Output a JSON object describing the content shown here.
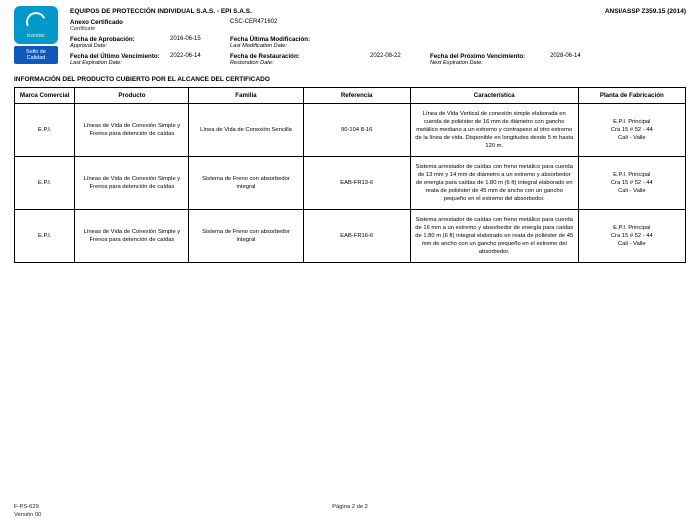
{
  "header": {
    "company": "EQUIPOS DE PROTECCIÓN INDIVIDUAL S.A.S. - EPI S.A.S.",
    "standard": "ANSI/ASSP Z359.15 (2014)",
    "annex_label": "Anexo Certificado",
    "annex_sub": "Certificate",
    "annex_value": "CSC-CER471602",
    "approval_label": "Fecha de Aprobación:",
    "approval_sub": "Approval Date:",
    "approval_value": "2016-06-15",
    "lastmod_label": "Fecha Última Modificación:",
    "lastmod_sub": "Last Modification Date:",
    "lastmod_value": "",
    "lastexp_label": "Fecha del Último Vencimiento:",
    "lastexp_sub": "Last Expiration Date:",
    "lastexp_value": "2022-06-14",
    "restore_label": "Fecha de Restauración:",
    "restore_sub": "Restoration Date:",
    "restore_value": "2022-08-22",
    "nextexp_label": "Fecha del Próximo Vencimiento:",
    "nextexp_sub": "Next Expiration Date:",
    "nextexp_value": "2028-06-14"
  },
  "logo": {
    "brand": "icontec",
    "seal_line1": "Sello de",
    "seal_line2": "Calidad"
  },
  "section_title": "INFORMACIÓN DEL PRODUCTO CUBIERTO POR EL ALCANCE DEL CERTIFICADO",
  "table": {
    "headers": {
      "marca": "Marca Comercial",
      "producto": "Producto",
      "familia": "Familia",
      "referencia": "Referencia",
      "caracteristica": "Característica",
      "planta": "Planta de Fabricación"
    },
    "rows": [
      {
        "marca": "E.P.I.",
        "producto": "Líneas de Vida de Conexión Simple y Frenos para detención de caídas",
        "familia": "Línea de Vida de Conexión Sencilla",
        "referencia": "90-104 8-16",
        "caracteristica": "Línea de Vida Vertical de conexión simple elaborada en cuerda de poliéster de 16 mm de diámetro con gancho metálico mediano a un extremo y contrapeso al otro extremo de la línea de vida. Disponible en longitudes desde 5 m hasta 120 m.",
        "planta": "E.P.I. Principal\nCra 15 # 52 - 44\nCali - Valle"
      },
      {
        "marca": "E.P.I.",
        "producto": "Líneas de Vida de Conexión Simple y Frenos para detención de caídas",
        "familia": "Sistema de Freno con absorbedor integral",
        "referencia": "EAB-FR13-6",
        "caracteristica": "Sistema arrestador de caídas con freno metálico para cuerda de 13 mm y 14 mm de diámetro a un extremo y absorbedor de energía para caídas de 1.80 m (6 ft) integral elaborado en reata de poliéster de 45 mm de ancho con un gancho pequeño en el extremo del absorbedor.",
        "planta": "E.P.I. Principal\nCra 15 # 52 - 44\nCali - Valle"
      },
      {
        "marca": "E.P.I.",
        "producto": "Líneas de Vida de Conexión Simple y Frenos para detención de caídas",
        "familia": "Sistema de Freno con absorbedor integral",
        "referencia": "EAB-FR16-6",
        "caracteristica": "Sistema arrestador de caídas con freno metálico para cuerda de 16 mm a un extremo y absorbedor de energía para caídas de 1.80 m (6 ft) integral elaborado en reata de poliéster de 45 mm de ancho con un gancho pequeño en el extremo del absorbedor.",
        "planta": "E.P.I. Principal\nCra 15 # 52 - 44\nCali - Valle"
      }
    ]
  },
  "footer": {
    "code": "F-PS-629",
    "version": "Versión 00",
    "page": "Página 2 de 2"
  }
}
